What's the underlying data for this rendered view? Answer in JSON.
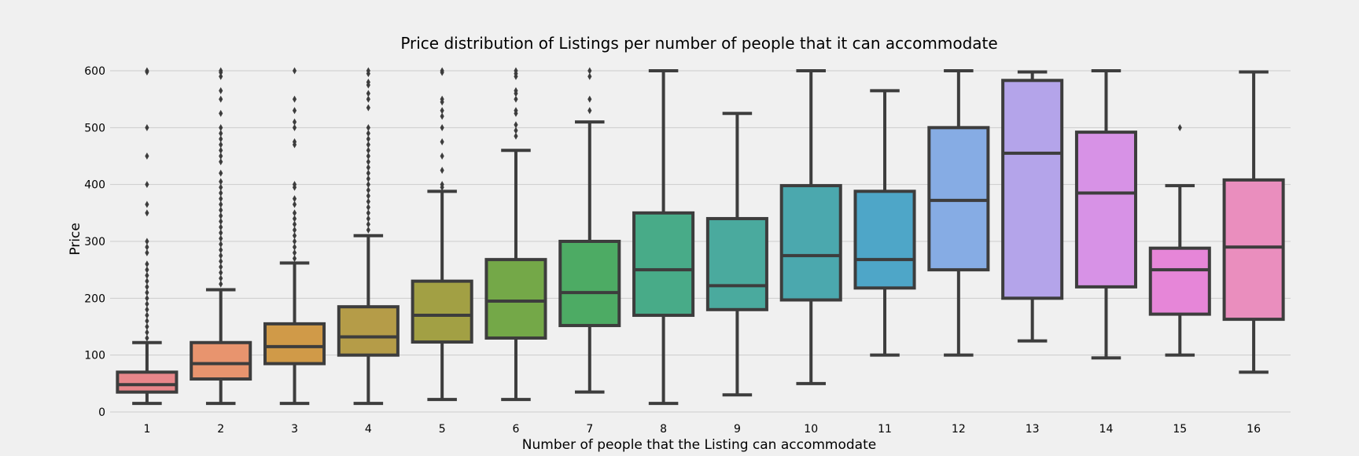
{
  "chart_data": {
    "type": "box",
    "title": "Price distribution of Listings per number of people that it can accommodate",
    "xlabel": "Number of people that the Listing can accommodate",
    "ylabel": "Price",
    "categories": [
      "1",
      "2",
      "3",
      "4",
      "5",
      "6",
      "7",
      "8",
      "9",
      "10",
      "11",
      "12",
      "13",
      "14",
      "15",
      "16"
    ],
    "ylim": [
      -10,
      615
    ],
    "yticks": [
      0,
      100,
      200,
      300,
      400,
      500,
      600
    ],
    "grid": "horizontal",
    "boxes": [
      {
        "category": "1",
        "min": 15,
        "q1": 35,
        "median": 48,
        "q3": 70,
        "max": 122,
        "color": "#e8868a",
        "outliers": [
          130,
          140,
          150,
          160,
          170,
          180,
          190,
          200,
          210,
          220,
          230,
          240,
          250,
          260,
          280,
          290,
          300,
          350,
          365,
          400,
          450,
          500,
          598,
          600
        ]
      },
      {
        "category": "2",
        "min": 15,
        "q1": 58,
        "median": 85,
        "q3": 122,
        "max": 215,
        "color": "#e8946e",
        "outliers": [
          225,
          235,
          245,
          255,
          265,
          275,
          285,
          295,
          305,
          315,
          325,
          335,
          345,
          355,
          365,
          375,
          385,
          395,
          405,
          420,
          440,
          450,
          460,
          470,
          480,
          490,
          500,
          525,
          550,
          565,
          590,
          597,
          600
        ]
      },
      {
        "category": "3",
        "min": 15,
        "q1": 85,
        "median": 115,
        "q3": 155,
        "max": 262,
        "color": "#d09a48",
        "outliers": [
          270,
          280,
          290,
          300,
          310,
          320,
          330,
          340,
          350,
          365,
          375,
          395,
          400,
          470,
          475,
          500,
          510,
          530,
          550,
          600
        ]
      },
      {
        "category": "4",
        "min": 15,
        "q1": 100,
        "median": 132,
        "q3": 185,
        "max": 310,
        "color": "#b59c48",
        "outliers": [
          320,
          330,
          340,
          350,
          360,
          370,
          380,
          390,
          400,
          410,
          420,
          430,
          440,
          450,
          460,
          470,
          480,
          490,
          500,
          535,
          550,
          560,
          575,
          580,
          595,
          600
        ]
      },
      {
        "category": "5",
        "min": 22,
        "q1": 123,
        "median": 170,
        "q3": 230,
        "max": 388,
        "color": "#a2a044",
        "outliers": [
          395,
          400,
          425,
          450,
          475,
          500,
          520,
          530,
          545,
          550,
          597,
          600
        ]
      },
      {
        "category": "6",
        "min": 22,
        "q1": 130,
        "median": 195,
        "q3": 268,
        "max": 460,
        "color": "#74a848",
        "outliers": [
          485,
          495,
          505,
          525,
          530,
          550,
          560,
          565,
          590,
          595,
          600
        ]
      },
      {
        "category": "7",
        "min": 35,
        "q1": 152,
        "median": 210,
        "q3": 300,
        "max": 510,
        "color": "#4dab64",
        "outliers": [
          530,
          550,
          590,
          600
        ]
      },
      {
        "category": "8",
        "min": 15,
        "q1": 170,
        "median": 250,
        "q3": 350,
        "max": 600,
        "color": "#48ab88",
        "outliers": []
      },
      {
        "category": "9",
        "min": 30,
        "q1": 180,
        "median": 222,
        "q3": 340,
        "max": 525,
        "color": "#4aaa9e",
        "outliers": []
      },
      {
        "category": "10",
        "min": 50,
        "q1": 197,
        "median": 275,
        "q3": 398,
        "max": 600,
        "color": "#4ba8ae",
        "outliers": []
      },
      {
        "category": "11",
        "min": 100,
        "q1": 218,
        "median": 268,
        "q3": 388,
        "max": 565,
        "color": "#4ea6c8",
        "outliers": []
      },
      {
        "category": "12",
        "min": 100,
        "q1": 250,
        "median": 372,
        "q3": 500,
        "max": 600,
        "color": "#86ace4",
        "outliers": []
      },
      {
        "category": "13",
        "min": 125,
        "q1": 200,
        "median": 455,
        "q3": 583,
        "max": 598,
        "color": "#b4a4ea",
        "outliers": []
      },
      {
        "category": "14",
        "min": 95,
        "q1": 220,
        "median": 385,
        "q3": 492,
        "max": 600,
        "color": "#d792e6",
        "outliers": []
      },
      {
        "category": "15",
        "min": 100,
        "q1": 172,
        "median": 250,
        "q3": 288,
        "max": 398,
        "color": "#e686d8",
        "outliers": [
          500
        ]
      },
      {
        "category": "16",
        "min": 70,
        "q1": 163,
        "median": 290,
        "q3": 408,
        "max": 598,
        "color": "#ea8ebe",
        "outliers": []
      }
    ]
  }
}
